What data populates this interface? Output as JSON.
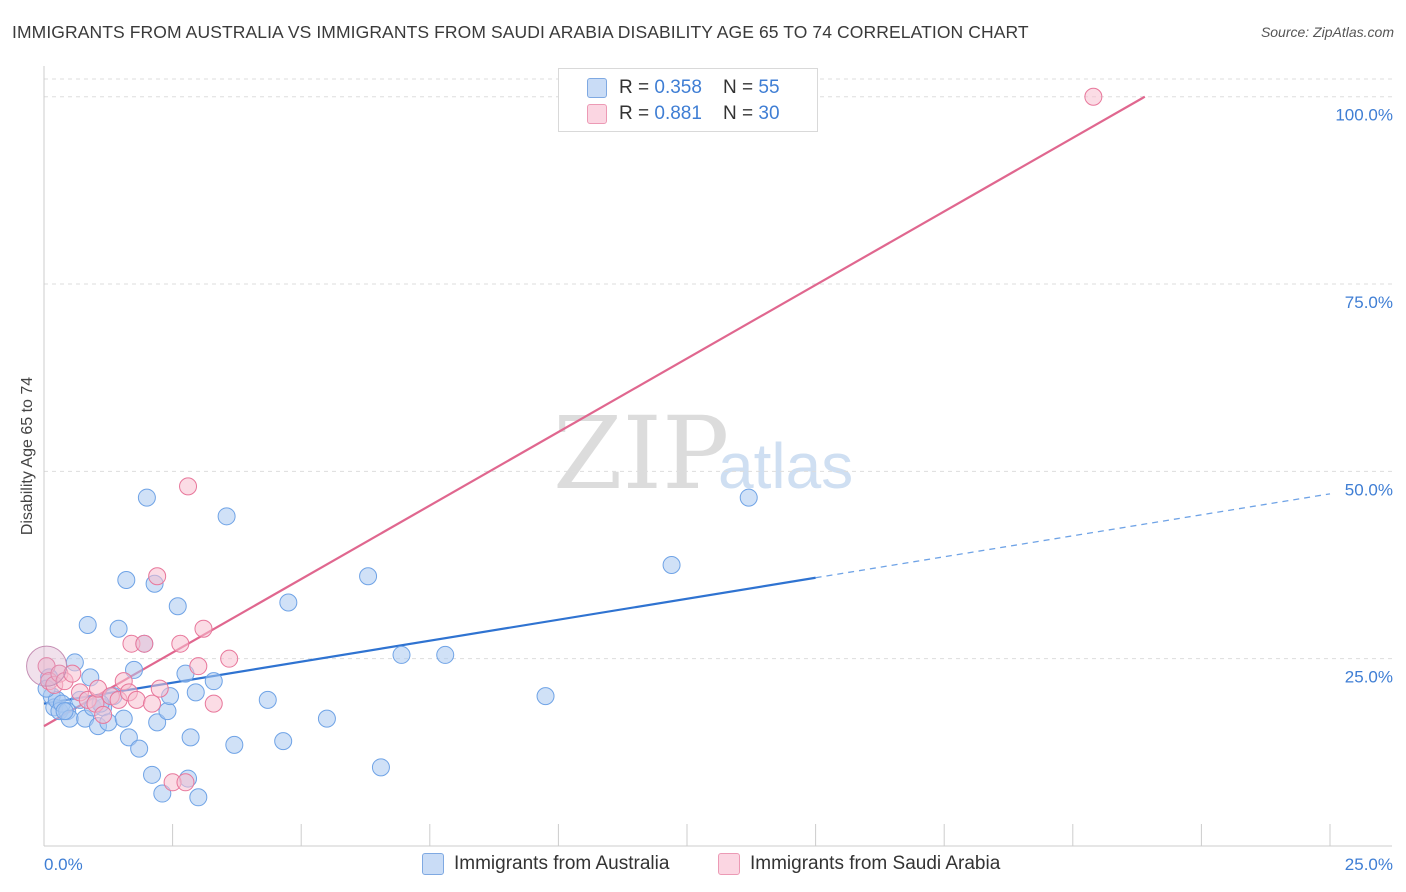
{
  "header": {
    "title": "IMMIGRANTS FROM AUSTRALIA VS IMMIGRANTS FROM SAUDI ARABIA DISABILITY AGE 65 TO 74 CORRELATION CHART",
    "source": "Source: ZipAtlas.com"
  },
  "watermark": {
    "zip": "ZIP",
    "atlas": "atlas"
  },
  "legend": {
    "rows": [
      {
        "r_label": "R = ",
        "r_value": "0.358",
        "n_label": "N = ",
        "n_value": "55",
        "color": "#a9c8f0"
      },
      {
        "r_label": "R = ",
        "r_value": "0.881",
        "n_label": "N = ",
        "n_value": "30",
        "color": "#f7bfd0"
      }
    ]
  },
  "bottom_legend": {
    "items": [
      {
        "label": "Immigrants from Australia",
        "color": "#a9c8f0"
      },
      {
        "label": "Immigrants from Saudi Arabia",
        "color": "#f7bfd0"
      }
    ]
  },
  "chart_data": {
    "type": "scatter",
    "title": "IMMIGRANTS FROM AUSTRALIA VS IMMIGRANTS FROM SAUDI ARABIA DISABILITY AGE 65 TO 74 CORRELATION CHART",
    "xlabel": "",
    "ylabel": "Disability Age 65 to 74",
    "xlim": [
      0,
      25
    ],
    "ylim": [
      0,
      102.5
    ],
    "x_tick_labels": [
      {
        "value": 0,
        "label": "0.0%"
      },
      {
        "value": 25,
        "label": "25.0%"
      }
    ],
    "y_tick_labels": [
      {
        "value": 25,
        "label": "25.0%"
      },
      {
        "value": 50,
        "label": "50.0%"
      },
      {
        "value": 75,
        "label": "75.0%"
      },
      {
        "value": 100,
        "label": "100.0%"
      }
    ],
    "grid": "horizontal dashed",
    "series": [
      {
        "name": "Immigrants from Australia",
        "color": "#6fa3e6",
        "fill": "#a9c8f0",
        "R": 0.358,
        "N": 55,
        "trend": {
          "x0": 0,
          "y0": 19.0,
          "x1": 15.0,
          "y1": 35.8,
          "dashed_to_x": 25,
          "dashed_to_y": 47.0
        },
        "points": [
          [
            0.1,
            22.5
          ],
          [
            0.15,
            20.0
          ],
          [
            0.2,
            18.5
          ],
          [
            0.25,
            19.5
          ],
          [
            0.3,
            18.0
          ],
          [
            0.35,
            19.0
          ],
          [
            0.45,
            18.0
          ],
          [
            0.5,
            17.0
          ],
          [
            0.6,
            24.5
          ],
          [
            0.7,
            19.5
          ],
          [
            0.8,
            17.0
          ],
          [
            0.85,
            29.5
          ],
          [
            0.9,
            22.5
          ],
          [
            0.95,
            18.5
          ],
          [
            1.05,
            16.0
          ],
          [
            1.15,
            18.5
          ],
          [
            1.25,
            16.5
          ],
          [
            1.35,
            20.0
          ],
          [
            1.45,
            29.0
          ],
          [
            1.55,
            17.0
          ],
          [
            1.6,
            35.5
          ],
          [
            1.65,
            14.5
          ],
          [
            1.75,
            23.5
          ],
          [
            1.85,
            13.0
          ],
          [
            1.95,
            27.0
          ],
          [
            2.0,
            46.5
          ],
          [
            2.1,
            9.5
          ],
          [
            2.15,
            35.0
          ],
          [
            2.2,
            16.5
          ],
          [
            2.3,
            7.0
          ],
          [
            2.4,
            18.0
          ],
          [
            2.45,
            20.0
          ],
          [
            2.6,
            32.0
          ],
          [
            2.75,
            23.0
          ],
          [
            2.8,
            9.0
          ],
          [
            2.85,
            14.5
          ],
          [
            2.95,
            20.5
          ],
          [
            3.0,
            6.5
          ],
          [
            3.3,
            22.0
          ],
          [
            3.55,
            44.0
          ],
          [
            3.7,
            13.5
          ],
          [
            4.35,
            19.5
          ],
          [
            4.65,
            14.0
          ],
          [
            4.75,
            32.5
          ],
          [
            5.5,
            17.0
          ],
          [
            6.3,
            36.0
          ],
          [
            6.55,
            10.5
          ],
          [
            6.95,
            25.5
          ],
          [
            7.8,
            25.5
          ],
          [
            9.75,
            20.0
          ],
          [
            12.2,
            37.5
          ],
          [
            13.7,
            46.5
          ],
          [
            0.05,
            21.0
          ],
          [
            0.4,
            18.0
          ],
          [
            1.1,
            19.0
          ]
        ]
      },
      {
        "name": "Immigrants from Saudi Arabia",
        "color": "#e8779b",
        "fill": "#f7bfd0",
        "R": 0.881,
        "N": 30,
        "trend": {
          "x0": 0,
          "y0": 16.0,
          "x1": 21.4,
          "y1": 100.0
        },
        "points": [
          [
            0.05,
            24.0
          ],
          [
            0.1,
            22.0
          ],
          [
            0.2,
            21.5
          ],
          [
            0.3,
            23.0
          ],
          [
            0.4,
            22.0
          ],
          [
            0.55,
            23.0
          ],
          [
            0.7,
            20.5
          ],
          [
            0.85,
            19.5
          ],
          [
            1.0,
            19.0
          ],
          [
            1.05,
            21.0
          ],
          [
            1.15,
            17.5
          ],
          [
            1.3,
            20.0
          ],
          [
            1.45,
            19.5
          ],
          [
            1.55,
            22.0
          ],
          [
            1.65,
            20.5
          ],
          [
            1.7,
            27.0
          ],
          [
            1.8,
            19.5
          ],
          [
            1.95,
            27.0
          ],
          [
            2.1,
            19.0
          ],
          [
            2.2,
            36.0
          ],
          [
            2.25,
            21.0
          ],
          [
            2.5,
            8.5
          ],
          [
            2.65,
            27.0
          ],
          [
            2.75,
            8.5
          ],
          [
            2.8,
            48.0
          ],
          [
            3.0,
            24.0
          ],
          [
            3.1,
            29.0
          ],
          [
            3.3,
            19.0
          ],
          [
            3.6,
            25.0
          ],
          [
            20.4,
            100.0
          ]
        ]
      }
    ]
  }
}
